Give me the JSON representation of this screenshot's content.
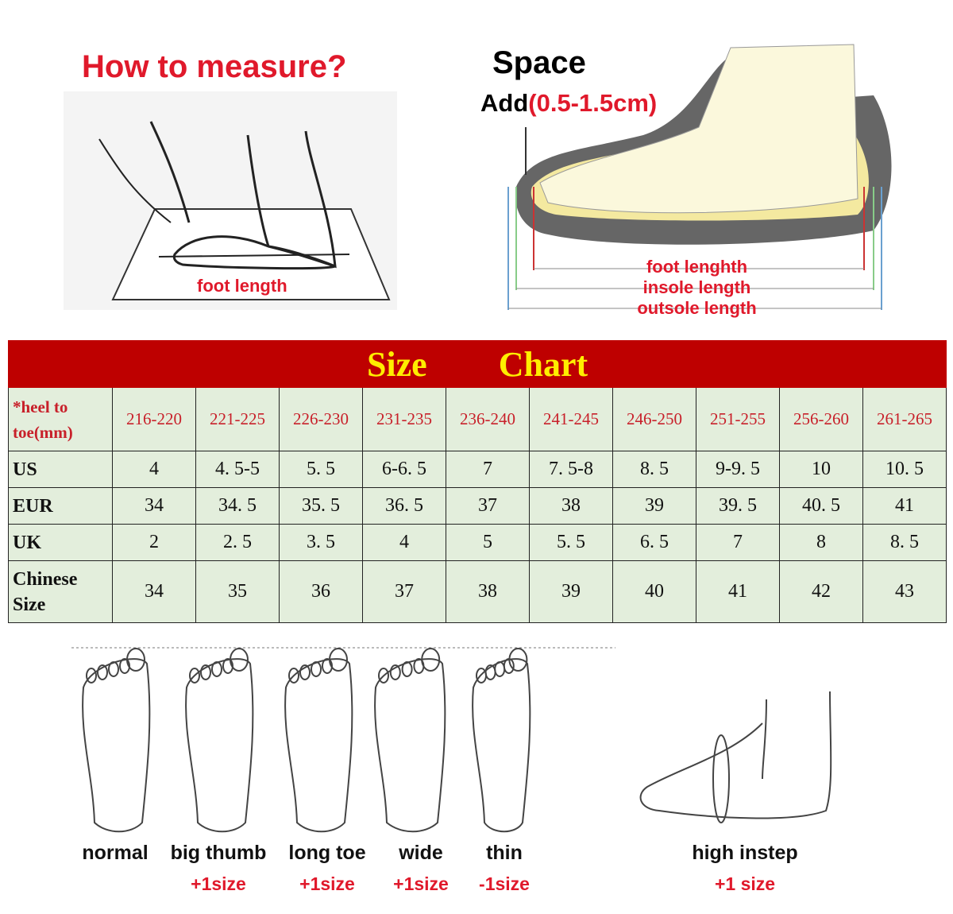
{
  "measure": {
    "title": "How to measure?",
    "foot_length_label": "foot length"
  },
  "space": {
    "title": "Space",
    "add_label": "Add",
    "add_value": "(0.5-1.5cm)",
    "lengths": [
      "foot lenghth",
      "insole length",
      "outsole length"
    ]
  },
  "size_chart": {
    "title_left": "Size",
    "title_right": "Chart",
    "header_label": "*heel to toe(mm)",
    "ranges": [
      "216-220",
      "221-225",
      "226-230",
      "231-235",
      "236-240",
      "241-245",
      "246-250",
      "251-255",
      "256-260",
      "261-265"
    ],
    "rows": [
      {
        "label": "US",
        "values": [
          "4",
          "4. 5-5",
          "5. 5",
          "6-6. 5",
          "7",
          "7. 5-8",
          "8. 5",
          "9-9. 5",
          "10",
          "10. 5"
        ]
      },
      {
        "label": "EUR",
        "values": [
          "34",
          "34. 5",
          "35. 5",
          "36. 5",
          "37",
          "38",
          "39",
          "39. 5",
          "40. 5",
          "41"
        ]
      },
      {
        "label": "UK",
        "values": [
          "2",
          "2. 5",
          "3. 5",
          "4",
          "5",
          "5. 5",
          "6. 5",
          "7",
          "8",
          "8. 5"
        ]
      },
      {
        "label": "Chinese Size",
        "values": [
          "34",
          "35",
          "36",
          "37",
          "38",
          "39",
          "40",
          "41",
          "42",
          "43"
        ]
      }
    ],
    "colors": {
      "header_bg": "#be0000",
      "title": "#ffee00",
      "cell_bg": "#e3eedc",
      "range_text": "#c8202a"
    }
  },
  "foot_types": [
    {
      "name": "normal",
      "adjust": ""
    },
    {
      "name": "big thumb",
      "adjust": "+1size"
    },
    {
      "name": "long toe",
      "adjust": "+1size"
    },
    {
      "name": "wide",
      "adjust": "+1size"
    },
    {
      "name": "thin",
      "adjust": "-1size"
    },
    {
      "name": "high instep",
      "adjust": "+1 size"
    }
  ]
}
